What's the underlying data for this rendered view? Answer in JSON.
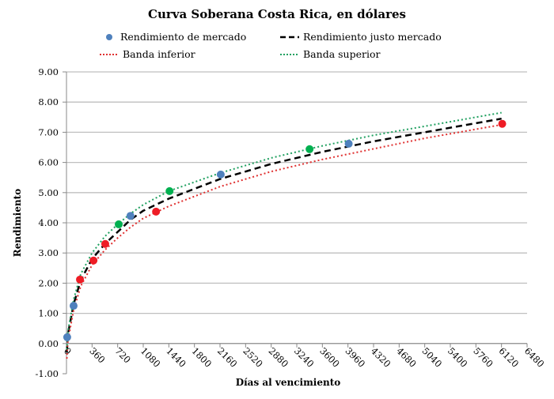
{
  "chart_data": {
    "type": "scatter",
    "title": "Curva Soberana Costa Rica, en dólares",
    "xlabel": "Días al vencimiento",
    "ylabel": "Rendimiento",
    "xlim": [
      0,
      6480
    ],
    "ylim": [
      -1,
      9
    ],
    "x_ticks": [
      0,
      360,
      720,
      1080,
      1440,
      1800,
      2160,
      2520,
      2880,
      3240,
      3600,
      3960,
      4320,
      4680,
      5040,
      5400,
      5760,
      6120,
      6480
    ],
    "y_ticks": [
      "-1.00",
      "0.00",
      "1.00",
      "2.00",
      "3.00",
      "4.00",
      "5.00",
      "6.00",
      "7.00",
      "8.00",
      "9.00"
    ],
    "grid": "horizontal",
    "legend_position": "top",
    "legend": {
      "market": "Rendimiento de mercado",
      "fair": "Rendimiento justo mercado",
      "lower": "Banda inferior",
      "upper": "Banda superior"
    },
    "colors": {
      "blue": "#4f81bd",
      "red": "#ee1c25",
      "green": "#00b050",
      "fair": "#000000",
      "lower": "#e03030",
      "upper": "#20a060"
    },
    "points": [
      {
        "x": 10,
        "y": 0.21,
        "color": "blue"
      },
      {
        "x": 100,
        "y": 1.25,
        "color": "blue"
      },
      {
        "x": 190,
        "y": 2.12,
        "color": "red"
      },
      {
        "x": 380,
        "y": 2.75,
        "color": "red"
      },
      {
        "x": 545,
        "y": 3.3,
        "color": "red"
      },
      {
        "x": 735,
        "y": 3.95,
        "color": "green"
      },
      {
        "x": 900,
        "y": 4.23,
        "color": "blue"
      },
      {
        "x": 1260,
        "y": 4.37,
        "color": "red"
      },
      {
        "x": 1450,
        "y": 5.05,
        "color": "green"
      },
      {
        "x": 2170,
        "y": 5.6,
        "color": "blue"
      },
      {
        "x": 3420,
        "y": 6.44,
        "color": "green"
      },
      {
        "x": 3970,
        "y": 6.62,
        "color": "blue"
      },
      {
        "x": 6130,
        "y": 7.28,
        "color": "red"
      }
    ],
    "curve_x": [
      5,
      20,
      100,
      200,
      360,
      540,
      720,
      900,
      1080,
      1440,
      2160,
      2880,
      3600,
      4320,
      5040,
      5760,
      6120
    ],
    "series": [
      {
        "name": "Rendimiento justo mercado",
        "values": [
          -0.3,
          0.3,
          1.3,
          2.1,
          2.8,
          3.3,
          3.7,
          4.1,
          4.4,
          4.8,
          5.45,
          5.95,
          6.35,
          6.7,
          7.0,
          7.3,
          7.45
        ]
      },
      {
        "name": "Banda inferior",
        "values": [
          -0.5,
          0.1,
          1.1,
          1.9,
          2.6,
          3.1,
          3.5,
          3.85,
          4.15,
          4.55,
          5.2,
          5.7,
          6.1,
          6.45,
          6.8,
          7.1,
          7.25
        ]
      },
      {
        "name": "Banda superior",
        "values": [
          -0.2,
          0.4,
          1.45,
          2.3,
          3.0,
          3.55,
          3.95,
          4.3,
          4.6,
          5.05,
          5.65,
          6.15,
          6.55,
          6.9,
          7.2,
          7.5,
          7.65
        ]
      }
    ]
  }
}
